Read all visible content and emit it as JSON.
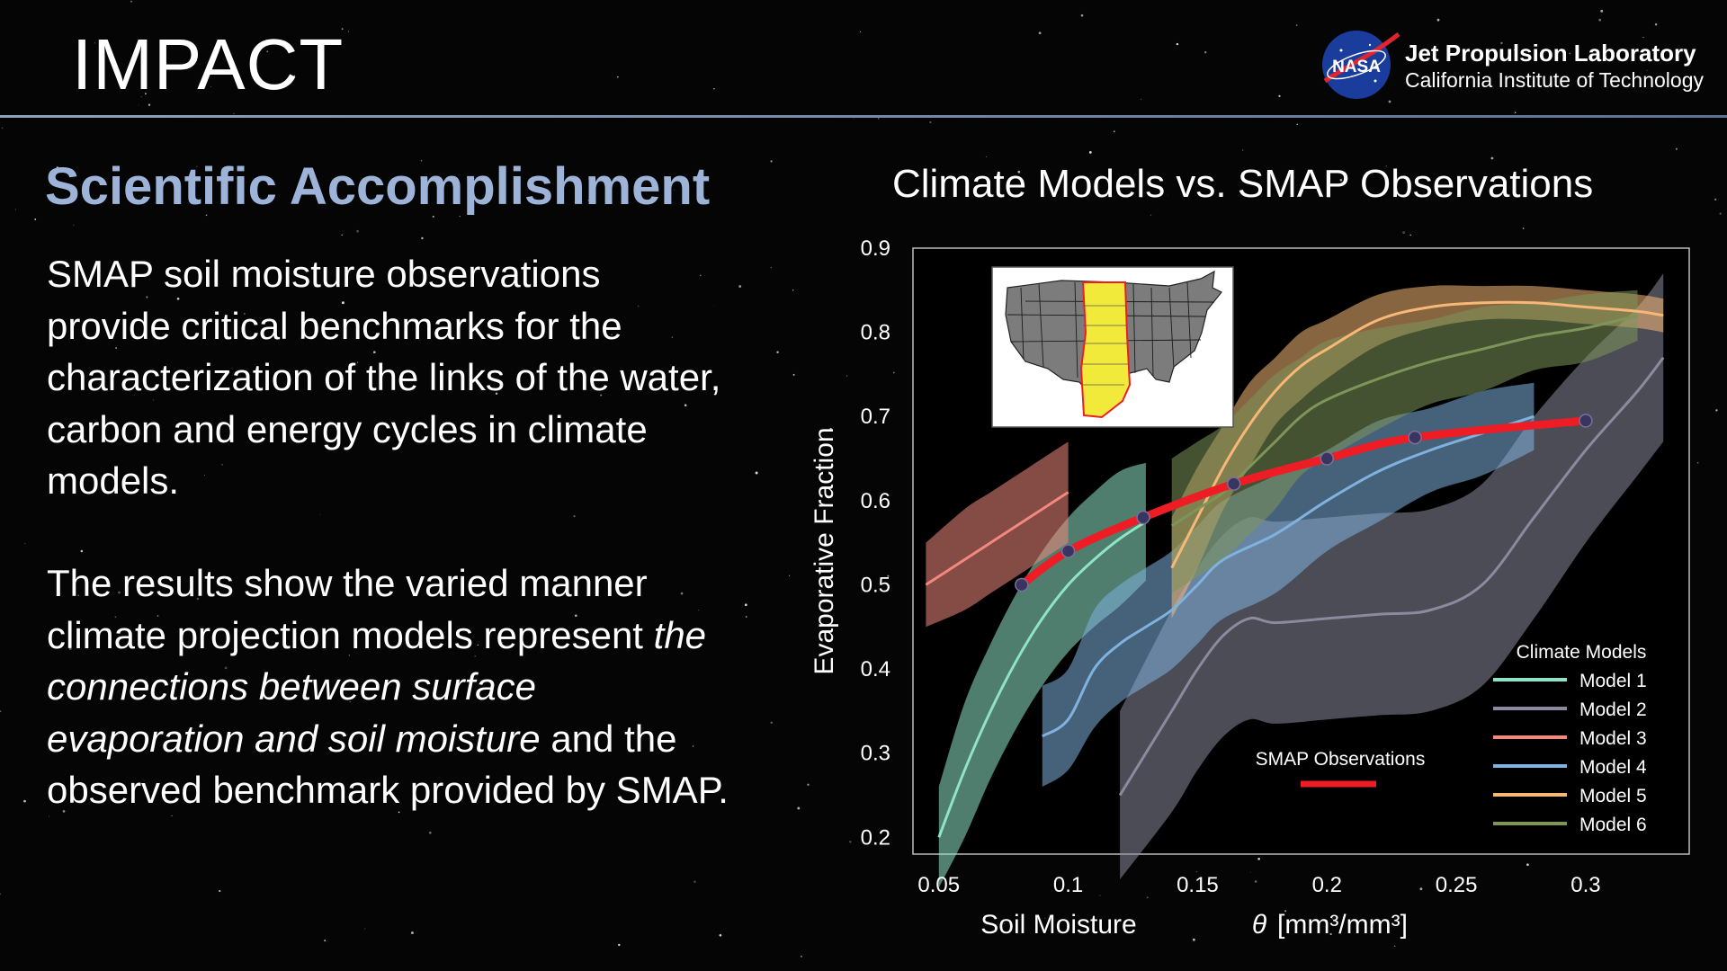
{
  "header": {
    "title": "IMPACT"
  },
  "logo": {
    "emblem_text": "NASA",
    "org_name": "Jet Propulsion Laboratory",
    "org_sub": "California Institute of Technology"
  },
  "content": {
    "heading": "Scientific Accomplishment",
    "para1": "SMAP soil moisture observations provide critical benchmarks for the characterization of the links of the water, carbon and energy cycles in climate models.",
    "para2_pre": "The results show the varied manner climate projection models represent ",
    "para2_em": "the connections between surface evaporation and soil moisture",
    "para2_post": " and the observed benchmark provided by SMAP."
  },
  "chart_data": {
    "type": "line",
    "title": "Climate Models vs. SMAP Observations",
    "xlabel": "Soil Moisture",
    "xlabel_symbol": "θ",
    "xlabel_unit": "[mm³/mm³]",
    "ylabel": "Evaporative Fraction",
    "xlim": [
      0.04,
      0.34
    ],
    "ylim": [
      0.18,
      0.9
    ],
    "x_ticks": [
      "0.05",
      "0.1",
      "0.15",
      "0.2",
      "0.25",
      "0.3"
    ],
    "y_ticks": [
      "0.9",
      "0.8",
      "0.7",
      "0.6",
      "0.5",
      "0.4",
      "0.3",
      "0.2"
    ],
    "legend_title": "Climate Models",
    "legend_position": "bottom-right",
    "series": [
      {
        "name": "Model 1",
        "color": "#8fe3c8",
        "x": [
          0.05,
          0.06,
          0.07,
          0.08,
          0.09,
          0.1,
          0.11,
          0.12,
          0.13
        ],
        "y": [
          0.2,
          0.28,
          0.35,
          0.41,
          0.46,
          0.5,
          0.53,
          0.555,
          0.575
        ],
        "band": [
          0.06,
          0.08,
          0.08,
          0.08,
          0.08,
          0.08,
          0.08,
          0.08,
          0.07
        ]
      },
      {
        "name": "Model 2",
        "color": "#8b8a9e",
        "x": [
          0.12,
          0.14,
          0.15,
          0.16,
          0.17,
          0.18,
          0.2,
          0.22,
          0.24,
          0.26,
          0.28,
          0.3,
          0.32,
          0.33
        ],
        "y": [
          0.25,
          0.35,
          0.4,
          0.44,
          0.46,
          0.455,
          0.46,
          0.465,
          0.47,
          0.5,
          0.58,
          0.66,
          0.73,
          0.77
        ],
        "band": [
          0.1,
          0.12,
          0.12,
          0.12,
          0.12,
          0.12,
          0.12,
          0.12,
          0.12,
          0.12,
          0.12,
          0.11,
          0.1,
          0.1
        ]
      },
      {
        "name": "Model 3",
        "color": "#f2887e",
        "x": [
          0.045,
          0.06,
          0.07,
          0.08,
          0.09,
          0.1
        ],
        "y": [
          0.5,
          0.53,
          0.55,
          0.57,
          0.59,
          0.61
        ],
        "band": [
          0.05,
          0.06,
          0.06,
          0.06,
          0.06,
          0.06
        ]
      },
      {
        "name": "Model 4",
        "color": "#7fb2df",
        "x": [
          0.09,
          0.1,
          0.11,
          0.12,
          0.13,
          0.14,
          0.15,
          0.16,
          0.18,
          0.2,
          0.22,
          0.24,
          0.26,
          0.28
        ],
        "y": [
          0.32,
          0.34,
          0.4,
          0.43,
          0.45,
          0.47,
          0.5,
          0.53,
          0.56,
          0.6,
          0.635,
          0.66,
          0.68,
          0.7
        ],
        "band": [
          0.06,
          0.06,
          0.07,
          0.07,
          0.07,
          0.07,
          0.07,
          0.07,
          0.07,
          0.06,
          0.06,
          0.05,
          0.05,
          0.04
        ]
      },
      {
        "name": "Model 5",
        "color": "#f7b877",
        "x": [
          0.14,
          0.15,
          0.16,
          0.17,
          0.18,
          0.19,
          0.2,
          0.22,
          0.24,
          0.26,
          0.28,
          0.3,
          0.32,
          0.33
        ],
        "y": [
          0.52,
          0.58,
          0.64,
          0.69,
          0.73,
          0.76,
          0.78,
          0.815,
          0.83,
          0.835,
          0.835,
          0.83,
          0.825,
          0.82
        ],
        "band": [
          0.06,
          0.06,
          0.05,
          0.05,
          0.04,
          0.04,
          0.035,
          0.03,
          0.025,
          0.02,
          0.02,
          0.02,
          0.02,
          0.02
        ]
      },
      {
        "name": "Model 6",
        "color": "#7e955a",
        "x": [
          0.14,
          0.15,
          0.16,
          0.17,
          0.18,
          0.19,
          0.2,
          0.22,
          0.24,
          0.26,
          0.28,
          0.3,
          0.32
        ],
        "y": [
          0.57,
          0.59,
          0.61,
          0.64,
          0.67,
          0.7,
          0.72,
          0.745,
          0.765,
          0.78,
          0.795,
          0.805,
          0.82
        ],
        "band": [
          0.08,
          0.08,
          0.08,
          0.08,
          0.08,
          0.07,
          0.07,
          0.06,
          0.05,
          0.05,
          0.04,
          0.04,
          0.03
        ]
      }
    ],
    "smap": {
      "name": "SMAP Observations",
      "color": "#ee1c25",
      "x": [
        0.082,
        0.1,
        0.129,
        0.164,
        0.2,
        0.234,
        0.3
      ],
      "y": [
        0.5,
        0.54,
        0.58,
        0.62,
        0.65,
        0.675,
        0.695
      ]
    },
    "inset": {
      "region": "Great Plains",
      "highlight_color": "#f2ea3a"
    }
  }
}
